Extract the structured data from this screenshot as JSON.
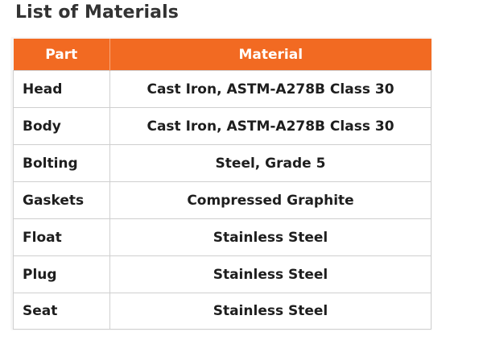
{
  "title": "List of Materials",
  "colors": {
    "header_bg": "#f26a22",
    "header_text": "#ffffff",
    "title_text": "#333333"
  },
  "table": {
    "headers": {
      "part": "Part",
      "material": "Material"
    },
    "rows": [
      {
        "part": "Head",
        "material": "Cast Iron, ASTM-A278B Class 30"
      },
      {
        "part": "Body",
        "material": "Cast Iron, ASTM-A278B Class 30"
      },
      {
        "part": "Bolting",
        "material": "Steel, Grade 5"
      },
      {
        "part": "Gaskets",
        "material": "Compressed Graphite"
      },
      {
        "part": "Float",
        "material": "Stainless Steel"
      },
      {
        "part": "Plug",
        "material": "Stainless Steel"
      },
      {
        "part": "Seat",
        "material": "Stainless Steel"
      }
    ]
  }
}
